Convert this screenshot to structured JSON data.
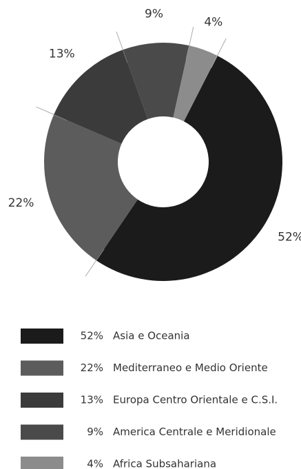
{
  "chart_data": {
    "type": "pie",
    "categories": [
      "Asia e Oceania",
      "Mediterraneo e Medio Oriente",
      "Europa Centro Orientale e C.S.I.",
      "America Centrale e Meridionale",
      "Africa Subsahariana"
    ],
    "values": [
      52,
      22,
      13,
      9,
      4
    ],
    "value_labels": [
      "52%",
      "22%",
      "13%",
      "9%",
      "4%"
    ],
    "colors": [
      "#1b1b1b",
      "#5c5c5c",
      "#3b3b3b",
      "#4a4a4a",
      "#8c8c8c"
    ],
    "donut": true,
    "legend": "bottom"
  }
}
